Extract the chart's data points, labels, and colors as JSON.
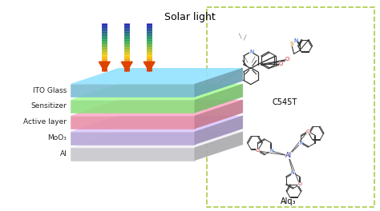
{
  "title": "Solar light",
  "layers": [
    {
      "label": "ITO Glass",
      "color": "#7bbdd4",
      "alpha": 0.9
    },
    {
      "label": "Sensitizer",
      "color": "#8fe080",
      "alpha": 0.9
    },
    {
      "label": "Active layer",
      "color": "#e890a8",
      "alpha": 0.9
    },
    {
      "label": "MoO₃",
      "color": "#b8a8d8",
      "alpha": 0.9
    },
    {
      "label": "Al",
      "color": "#c8c8cc",
      "alpha": 0.9
    }
  ],
  "bg_color": "#ffffff",
  "box_color": "#aacc44",
  "chem_label1": "C545T",
  "chem_label2": "Alq₃"
}
